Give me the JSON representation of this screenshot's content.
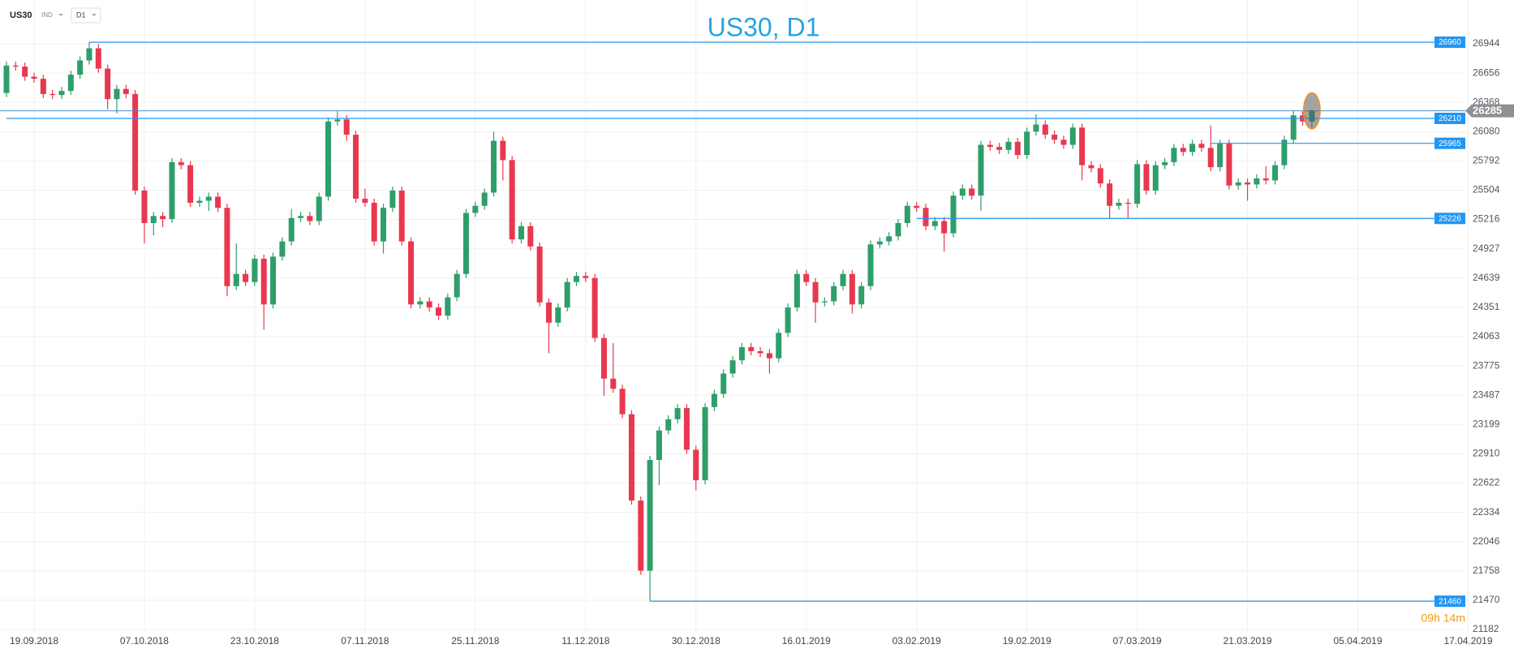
{
  "header": {
    "symbol": "US30",
    "market": "IND",
    "timeframe": "D1"
  },
  "chart_data": {
    "type": "candlestick",
    "title": "US30, D1",
    "categories": [
      null,
      null,
      null,
      "19.09.2018",
      null,
      null,
      null,
      null,
      null,
      null,
      null,
      null,
      null,
      null,
      null,
      "07.10.2018",
      null,
      null,
      null,
      null,
      null,
      null,
      null,
      null,
      null,
      null,
      null,
      "23.10.2018",
      null,
      null,
      null,
      null,
      null,
      null,
      null,
      null,
      null,
      null,
      null,
      "07.11.2018",
      null,
      null,
      null,
      null,
      null,
      null,
      null,
      null,
      null,
      null,
      null,
      "25.11.2018",
      null,
      null,
      null,
      null,
      null,
      null,
      null,
      null,
      null,
      null,
      null,
      "11.12.2018",
      null,
      null,
      null,
      null,
      null,
      null,
      null,
      null,
      null,
      null,
      null,
      "30.12.2018",
      null,
      null,
      null,
      null,
      null,
      null,
      null,
      null,
      null,
      null,
      null,
      "16.01.2019",
      null,
      null,
      null,
      null,
      null,
      null,
      null,
      null,
      null,
      null,
      null,
      "03.02.2019",
      null,
      null,
      null,
      null,
      null,
      null,
      null,
      null,
      null,
      null,
      null,
      "19.02.2019",
      null,
      null,
      null,
      null,
      null,
      null,
      null,
      null,
      null,
      null,
      null,
      "07.03.2019",
      null,
      null,
      null,
      null,
      null,
      null,
      null,
      null,
      null,
      null,
      null,
      "21.03.2019",
      null,
      null,
      null,
      null,
      null,
      null,
      null,
      null,
      null,
      null,
      null,
      "05.04.2019",
      null,
      null,
      null,
      null,
      null,
      null,
      null,
      null,
      null,
      null,
      null,
      "17.04.2019"
    ],
    "open": [
      26460,
      26730,
      26720,
      26620,
      26600,
      26450,
      26440,
      26480,
      26640,
      26780,
      26900,
      26700,
      26400,
      26500,
      26450,
      25500,
      25180,
      25250,
      25220,
      25780,
      25750,
      25380,
      25400,
      25440,
      25330,
      24560,
      24680,
      24600,
      24830,
      24380,
      24850,
      25000,
      25230,
      25250,
      25200,
      25440,
      26180,
      26200,
      26050,
      25420,
      25380,
      25000,
      25330,
      25500,
      25000,
      24380,
      24410,
      24350,
      24270,
      24450,
      24680,
      25280,
      25350,
      25480,
      25990,
      25800,
      25020,
      25150,
      24950,
      24400,
      24200,
      24350,
      24600,
      24660,
      24640,
      24050,
      23650,
      23550,
      23300,
      22450,
      21760,
      22850,
      23140,
      23250,
      23360,
      22950,
      22650,
      23370,
      23500,
      23700,
      23830,
      23960,
      23920,
      23900,
      23850,
      24100,
      24350,
      24680,
      24600,
      24400,
      24410,
      24560,
      24680,
      24380,
      24560,
      24970,
      25000,
      25050,
      25180,
      25350,
      25330,
      25150,
      25200,
      25080,
      25450,
      25520,
      25450,
      25950,
      25930,
      25900,
      25980,
      25850,
      26080,
      26150,
      26050,
      26000,
      25950,
      26120,
      25750,
      25720,
      25570,
      25350,
      25380,
      25370,
      25760,
      25500,
      25750,
      25780,
      25920,
      25880,
      25960,
      25920,
      25730,
      25960,
      25550,
      25580,
      25560,
      25620,
      25600,
      25750,
      26000,
      26240,
      26180,
      null,
      null,
      null,
      null,
      null,
      null,
      null,
      null,
      null,
      null,
      null,
      null,
      null,
      null,
      null,
      null,
      null
    ],
    "high": [
      26770,
      26770,
      26760,
      26660,
      26640,
      26490,
      26520,
      26680,
      26820,
      26960,
      26940,
      26740,
      26540,
      26540,
      26490,
      25540,
      25290,
      25290,
      25820,
      25820,
      25790,
      25440,
      25480,
      25480,
      25370,
      24980,
      24720,
      24870,
      24870,
      24890,
      25040,
      25320,
      25290,
      25290,
      25480,
      26220,
      26280,
      26240,
      26090,
      25520,
      25420,
      25370,
      25540,
      25540,
      25040,
      24450,
      24450,
      24390,
      24490,
      24720,
      25320,
      25390,
      25520,
      26080,
      26030,
      25840,
      25190,
      25190,
      24990,
      24440,
      24390,
      24640,
      24700,
      24700,
      24680,
      24090,
      24000,
      23590,
      23340,
      22490,
      22890,
      23180,
      23290,
      23400,
      23400,
      22990,
      23410,
      23540,
      23740,
      23870,
      24000,
      24000,
      23960,
      23940,
      24140,
      24390,
      24720,
      24720,
      24640,
      24450,
      24600,
      24720,
      24720,
      24600,
      25010,
      25040,
      25090,
      25220,
      25390,
      25390,
      25370,
      25240,
      25240,
      25490,
      25560,
      25560,
      25990,
      25990,
      25970,
      26020,
      26020,
      26120,
      26250,
      26190,
      26090,
      26040,
      26160,
      26160,
      25790,
      25760,
      25610,
      25420,
      25420,
      25800,
      25800,
      25790,
      25820,
      25960,
      25960,
      26000,
      26000,
      26140,
      26000,
      26000,
      25620,
      25620,
      25660,
      25740,
      25790,
      26040,
      26280,
      26280,
      26300,
      null,
      null,
      null,
      null,
      null,
      null,
      null,
      null,
      null,
      null,
      null,
      null,
      null,
      null,
      null,
      null,
      null
    ],
    "low": [
      26420,
      26680,
      26580,
      26560,
      26410,
      26400,
      26400,
      26440,
      26600,
      26740,
      26660,
      26300,
      26260,
      26410,
      25460,
      24980,
      25060,
      25140,
      25180,
      25710,
      25340,
      25340,
      25300,
      25290,
      24460,
      24520,
      24560,
      24560,
      24130,
      24340,
      24810,
      24960,
      25190,
      25160,
      25160,
      25400,
      26140,
      25990,
      25380,
      25340,
      24960,
      24880,
      25290,
      24960,
      24340,
      24340,
      24310,
      24230,
      24230,
      24410,
      24640,
      25240,
      25310,
      25440,
      25600,
      24980,
      24980,
      24910,
      24360,
      23900,
      24160,
      24310,
      24560,
      24600,
      24010,
      23480,
      23510,
      23260,
      22410,
      21720,
      21460,
      22600,
      23100,
      23210,
      22910,
      22550,
      22610,
      23330,
      23460,
      23660,
      23790,
      23880,
      23860,
      23700,
      23810,
      24060,
      24310,
      24560,
      24200,
      24360,
      24370,
      24520,
      24290,
      24340,
      24520,
      24930,
      24960,
      25010,
      25140,
      25290,
      25110,
      25110,
      24900,
      25040,
      25410,
      25410,
      25300,
      25890,
      25860,
      25860,
      25810,
      25810,
      26040,
      26010,
      25960,
      25910,
      25910,
      25600,
      25680,
      25530,
      25230,
      25310,
      25226,
      25330,
      25460,
      25460,
      25710,
      25740,
      25840,
      25840,
      25880,
      25690,
      25690,
      25510,
      25510,
      25400,
      25520,
      25560,
      25560,
      25710,
      25960,
      26140,
      26100,
      null,
      null,
      null,
      null,
      null,
      null,
      null,
      null,
      null,
      null,
      null,
      null,
      null,
      null,
      null,
      null,
      null
    ],
    "close": [
      26730,
      26720,
      26620,
      26600,
      26450,
      26440,
      26480,
      26640,
      26780,
      26900,
      26700,
      26400,
      26500,
      26450,
      25500,
      25180,
      25250,
      25220,
      25780,
      25750,
      25380,
      25400,
      25440,
      25330,
      24560,
      24680,
      24600,
      24830,
      24380,
      24850,
      25000,
      25230,
      25250,
      25200,
      25440,
      26180,
      26200,
      26050,
      25420,
      25380,
      25000,
      25330,
      25500,
      25000,
      24380,
      24410,
      24350,
      24270,
      24450,
      24680,
      25280,
      25350,
      25480,
      25990,
      25800,
      25020,
      25150,
      24950,
      24400,
      24200,
      24350,
      24600,
      24660,
      24640,
      24050,
      23650,
      23550,
      23300,
      22450,
      21760,
      22850,
      23140,
      23250,
      23360,
      22950,
      22650,
      23370,
      23500,
      23700,
      23830,
      23960,
      23920,
      23900,
      23850,
      24100,
      24350,
      24680,
      24600,
      24400,
      24410,
      24560,
      24680,
      24380,
      24560,
      24970,
      25000,
      25050,
      25180,
      25350,
      25330,
      25150,
      25200,
      25080,
      25450,
      25520,
      25450,
      25950,
      25930,
      25900,
      25980,
      25850,
      26080,
      26150,
      26050,
      26000,
      25950,
      26120,
      25750,
      25720,
      25570,
      25350,
      25380,
      25370,
      25760,
      25500,
      25750,
      25780,
      25920,
      25880,
      25960,
      25920,
      25730,
      25960,
      25550,
      25580,
      25560,
      25620,
      25600,
      25750,
      26000,
      26240,
      26180,
      26285,
      null,
      null,
      null,
      null,
      null,
      null,
      null,
      null,
      null,
      null,
      null,
      null,
      null,
      null,
      null,
      null,
      null
    ],
    "up_color": "#2e9e6a",
    "down_color": "#e8384f",
    "level_color": "#2196f3",
    "levels": [
      26960,
      26210,
      25965,
      25226,
      21460
    ],
    "current_price": 26285,
    "ylim": [
      21150,
      27375
    ],
    "yticks": [
      26944,
      26656,
      26368,
      26080,
      25792,
      25504,
      25216,
      24927,
      24639,
      24351,
      24063,
      23775,
      23487,
      23199,
      22910,
      22622,
      22334,
      22046,
      21758,
      21470,
      21182
    ],
    "grid": true,
    "timer": "09h 14m"
  }
}
